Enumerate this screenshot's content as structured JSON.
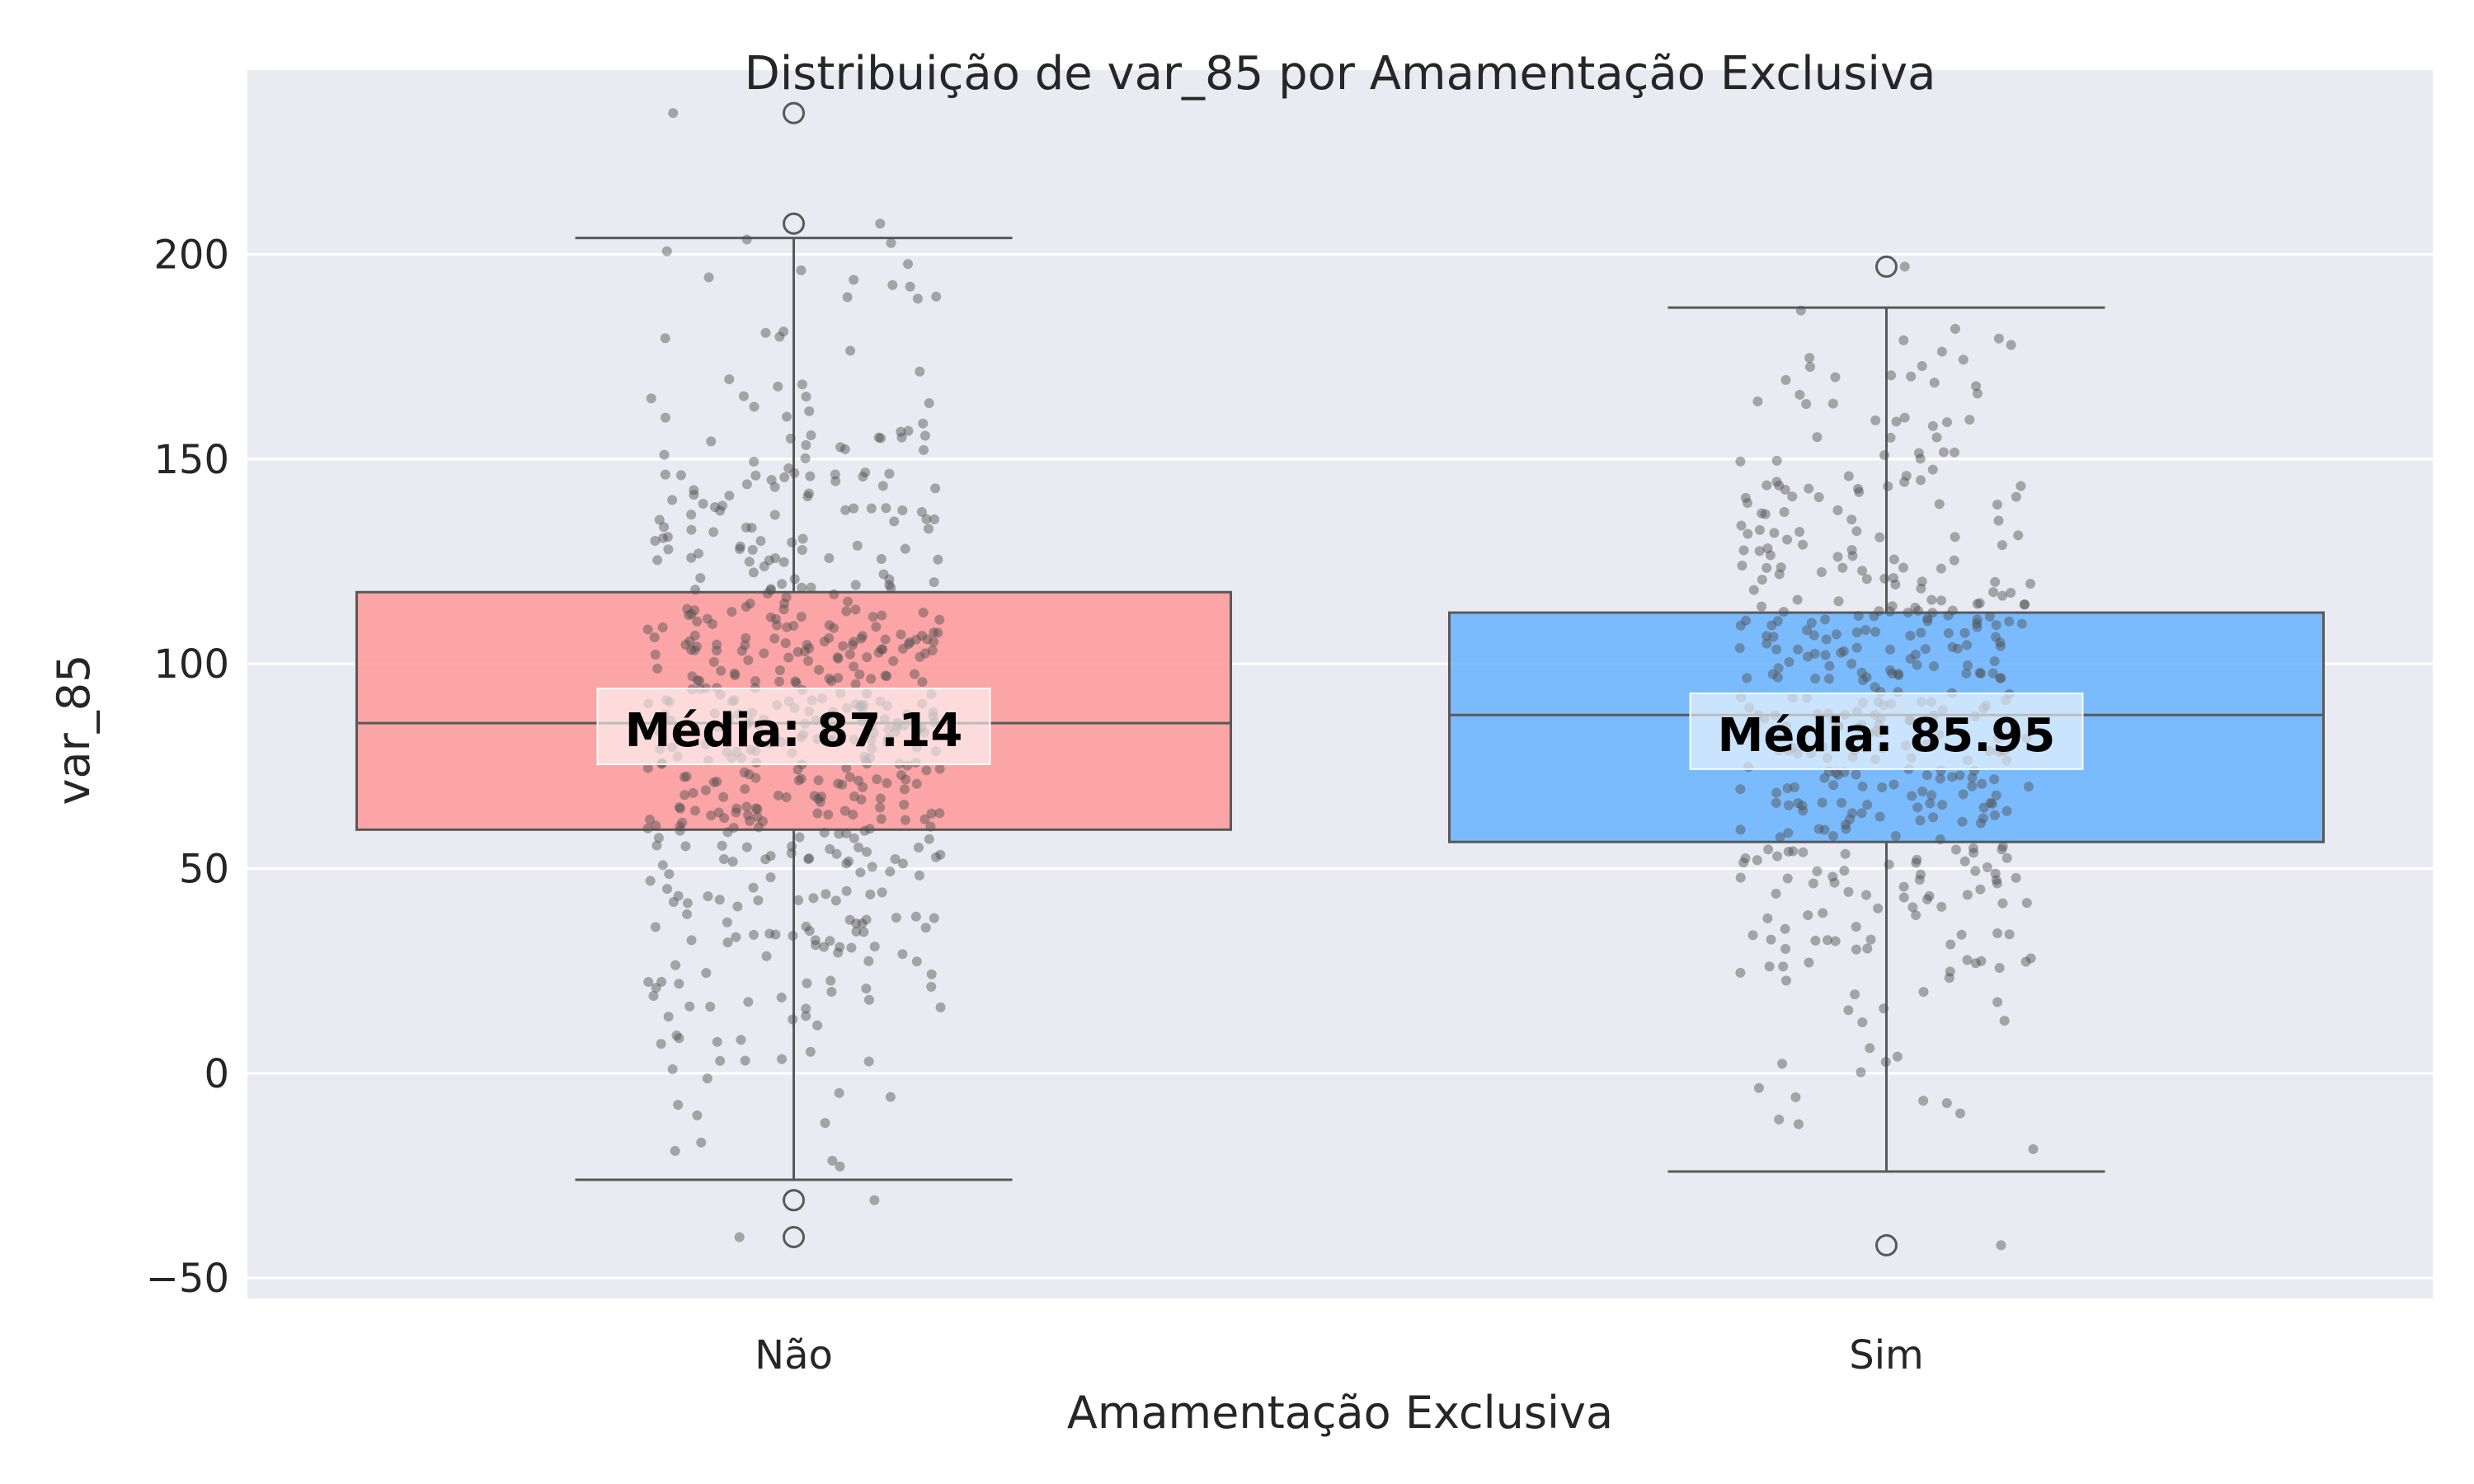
{
  "chart_data": {
    "type": "box",
    "title": "Distribuição de var_85 por Amamentação Exclusiva",
    "xlabel": "Amamentação Exclusiva",
    "ylabel": "var_85",
    "categories": [
      "Não",
      "Sim"
    ],
    "ylim": [
      -55,
      245
    ],
    "yticks": [
      -50,
      0,
      50,
      100,
      150,
      200
    ],
    "ytick_labels": [
      "−50",
      "0",
      "50",
      "100",
      "150",
      "200"
    ],
    "grid": true,
    "series": [
      {
        "category": "Não",
        "color": "#FF9999",
        "q1": 59.5,
        "median": 85.5,
        "q3": 117.5,
        "whisker_low": -26,
        "whisker_high": 204,
        "mean": 87.14,
        "mean_label": "Média: 87.14",
        "outliers": [
          234.5,
          207.5,
          -31,
          -40
        ],
        "jitter_count": 560
      },
      {
        "category": "Sim",
        "color": "#66B3FF",
        "q1": 56.5,
        "median": 87.5,
        "q3": 112.5,
        "whisker_low": -24,
        "whisker_high": 187,
        "mean": 85.95,
        "mean_label": "Média: 85.95",
        "outliers": [
          197,
          -42
        ],
        "jitter_count": 440
      }
    ]
  }
}
